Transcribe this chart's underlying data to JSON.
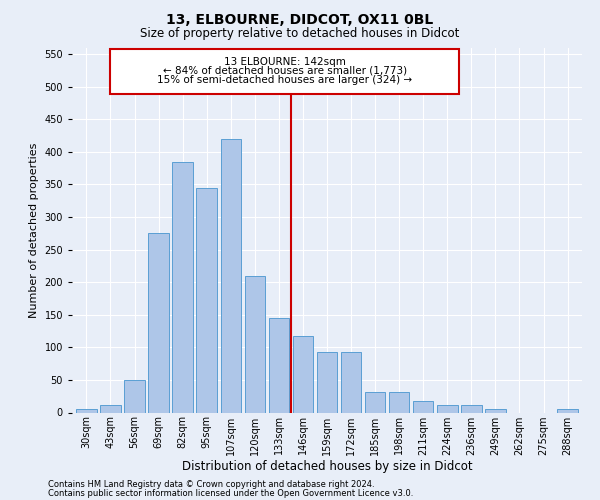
{
  "title1": "13, ELBOURNE, DIDCOT, OX11 0BL",
  "title2": "Size of property relative to detached houses in Didcot",
  "xlabel": "Distribution of detached houses by size in Didcot",
  "ylabel": "Number of detached properties",
  "footnote1": "Contains HM Land Registry data © Crown copyright and database right 2024.",
  "footnote2": "Contains public sector information licensed under the Open Government Licence v3.0.",
  "categories": [
    "30sqm",
    "43sqm",
    "56sqm",
    "69sqm",
    "82sqm",
    "95sqm",
    "107sqm",
    "120sqm",
    "133sqm",
    "146sqm",
    "159sqm",
    "172sqm",
    "185sqm",
    "198sqm",
    "211sqm",
    "224sqm",
    "236sqm",
    "249sqm",
    "262sqm",
    "275sqm",
    "288sqm"
  ],
  "values": [
    5,
    12,
    50,
    275,
    385,
    345,
    420,
    210,
    145,
    117,
    93,
    93,
    31,
    31,
    18,
    12,
    12,
    5,
    0,
    0,
    5
  ],
  "bar_color": "#aec6e8",
  "bar_edge_color": "#5a9fd4",
  "vline_x_index": 8.5,
  "vline_color": "#cc0000",
  "annotation_title": "13 ELBOURNE: 142sqm",
  "annotation_line1": "← 84% of detached houses are smaller (1,773)",
  "annotation_line2": "15% of semi-detached houses are larger (324) →",
  "annotation_box_color": "#cc0000",
  "ylim": [
    0,
    560
  ],
  "yticks": [
    0,
    50,
    100,
    150,
    200,
    250,
    300,
    350,
    400,
    450,
    500,
    550
  ],
  "background_color": "#e8eef8",
  "grid_color": "#ffffff",
  "title1_fontsize": 10,
  "title2_fontsize": 8.5,
  "xlabel_fontsize": 8.5,
  "ylabel_fontsize": 8,
  "tick_fontsize": 7,
  "annotation_fontsize": 7.5,
  "footnote_fontsize": 6
}
